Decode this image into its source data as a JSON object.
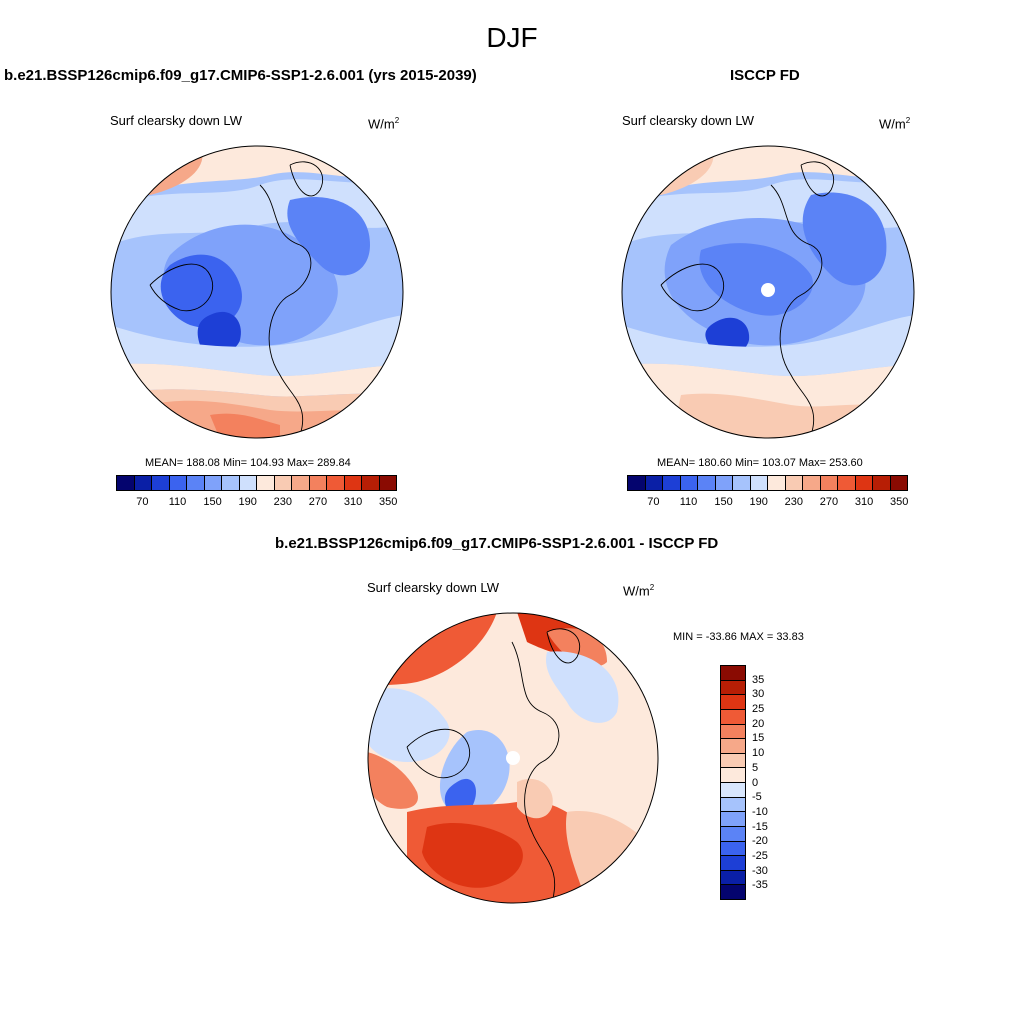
{
  "title": "DJF",
  "panels": {
    "model": {
      "title": "b.e21.BSSP126cmip6.f09_g17.CMIP6-SSP1-2.6.001 (yrs 2015-2039)",
      "variable": "Surf clearsky down LW",
      "units": "W/m",
      "units_sup": "2",
      "stats": "MEAN= 188.08  Min= 104.93  Max= 289.84"
    },
    "obs": {
      "title": "ISCCP FD",
      "variable": "Surf clearsky down LW",
      "units": "W/m",
      "units_sup": "2",
      "stats": "MEAN= 180.60  Min= 103.07  Max= 253.60"
    },
    "diff": {
      "title": "b.e21.BSSP126cmip6.f09_g17.CMIP6-SSP1-2.6.001 - ISCCP FD",
      "variable": "Surf clearsky down LW",
      "units": "W/m",
      "units_sup": "2",
      "minmax": "MIN = -33.86 MAX =  33.83"
    }
  },
  "colorbars": {
    "absolute": {
      "colors": [
        "#04046e",
        "#0a1fa6",
        "#1d3fd6",
        "#3b63ef",
        "#5b83f6",
        "#7fa2fa",
        "#a6c3fc",
        "#cfe0fd",
        "#fde9dc",
        "#f9cbb3",
        "#f6a889",
        "#f3815e",
        "#ef5a36",
        "#de3513",
        "#b71e05",
        "#8a0b02"
      ],
      "labels": [
        "70",
        "110",
        "150",
        "190",
        "230",
        "270",
        "310",
        "350"
      ]
    },
    "difference": {
      "colors": [
        "#8a0b02",
        "#b71e05",
        "#de3513",
        "#ef5a36",
        "#f3815e",
        "#f6a889",
        "#f9cbb3",
        "#fde9dc",
        "#d8e6fd",
        "#a6c3fc",
        "#7fa2fa",
        "#5b83f6",
        "#3b63ef",
        "#1d3fd6",
        "#0a1fa6",
        "#04046e"
      ],
      "labels": [
        "35",
        "30",
        "25",
        "20",
        "15",
        "10",
        "5",
        "0",
        "-5",
        "-10",
        "-15",
        "-20",
        "-25",
        "-30",
        "-35"
      ]
    }
  }
}
